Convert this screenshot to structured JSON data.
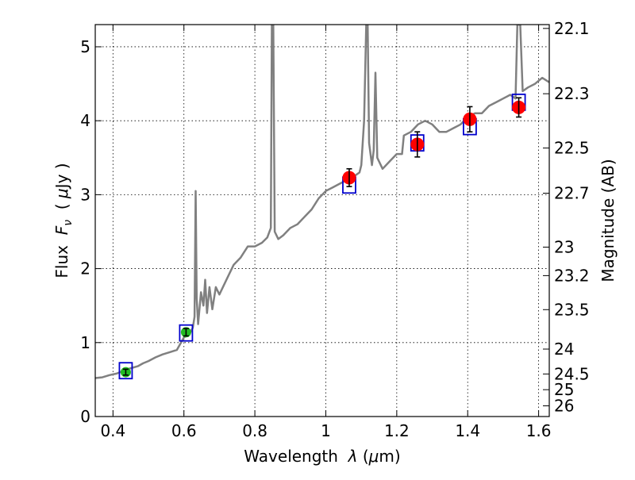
{
  "chart_data": {
    "type": "scatter",
    "title": "",
    "xlabel_plain": "Wavelength  ",
    "xlabel_symbol": "λ",
    "xlabel_unit_open": " (",
    "xlabel_mu": "μ",
    "xlabel_unit_close": "m)",
    "ylabel_prefix": "Flux  ",
    "ylabel_symbol": "F",
    "ylabel_subscript": "ν",
    "ylabel_unit_open": "  ( ",
    "ylabel_mu": "μ",
    "ylabel_unit_close": "Jy )",
    "y2label": "Magnitude (AB)",
    "xlim": [
      0.35,
      1.63
    ],
    "ylim": [
      0,
      5.3
    ],
    "x_ticks": [
      0.4,
      0.6,
      0.8,
      1.0,
      1.2,
      1.4,
      1.6
    ],
    "x_tick_labels": [
      "0.4",
      "0.6",
      "0.8",
      "1",
      "1.2",
      "1.4",
      "1.6"
    ],
    "y_ticks": [
      0,
      1,
      2,
      3,
      4,
      5
    ],
    "y_tick_labels": [
      "0",
      "1",
      "2",
      "3",
      "4",
      "5"
    ],
    "y2_ticks": [
      {
        "label": "22.1",
        "mag": 22.1
      },
      {
        "label": "22.3",
        "mag": 22.3
      },
      {
        "label": "22.5",
        "mag": 22.5
      },
      {
        "label": "22.7",
        "mag": 22.7
      },
      {
        "label": "23",
        "mag": 23.0
      },
      {
        "label": "23.2",
        "mag": 23.2
      },
      {
        "label": "23.5",
        "mag": 23.5
      },
      {
        "label": "24",
        "mag": 24.0
      },
      {
        "label": "24.5",
        "mag": 24.5
      },
      {
        "label": "25",
        "mag": 25.0
      },
      {
        "label": "26",
        "mag": 26.0
      }
    ],
    "grid": true,
    "colors": {
      "spectrum": "#808080",
      "model_box": "#0000cc",
      "optical_points": "#22bb22",
      "nir_points": "#ff0000",
      "errorbar": "#000000"
    },
    "spectrum": [
      [
        0.35,
        0.52
      ],
      [
        0.37,
        0.53
      ],
      [
        0.39,
        0.56
      ],
      [
        0.41,
        0.58
      ],
      [
        0.425,
        0.61
      ],
      [
        0.44,
        0.64
      ],
      [
        0.455,
        0.66
      ],
      [
        0.47,
        0.68
      ],
      [
        0.485,
        0.72
      ],
      [
        0.5,
        0.75
      ],
      [
        0.52,
        0.8
      ],
      [
        0.54,
        0.84
      ],
      [
        0.56,
        0.87
      ],
      [
        0.58,
        0.9
      ],
      [
        0.6,
        1.07
      ],
      [
        0.615,
        1.11
      ],
      [
        0.625,
        1.2
      ],
      [
        0.63,
        1.35
      ],
      [
        0.633,
        3.05
      ],
      [
        0.636,
        1.6
      ],
      [
        0.64,
        1.25
      ],
      [
        0.648,
        1.68
      ],
      [
        0.655,
        1.5
      ],
      [
        0.66,
        1.85
      ],
      [
        0.665,
        1.4
      ],
      [
        0.672,
        1.75
      ],
      [
        0.68,
        1.45
      ],
      [
        0.69,
        1.75
      ],
      [
        0.7,
        1.65
      ],
      [
        0.72,
        1.85
      ],
      [
        0.74,
        2.05
      ],
      [
        0.76,
        2.15
      ],
      [
        0.78,
        2.3
      ],
      [
        0.8,
        2.3
      ],
      [
        0.82,
        2.35
      ],
      [
        0.835,
        2.42
      ],
      [
        0.845,
        2.55
      ],
      [
        0.848,
        5.3
      ],
      [
        0.852,
        5.3
      ],
      [
        0.856,
        2.5
      ],
      [
        0.866,
        2.4
      ],
      [
        0.88,
        2.45
      ],
      [
        0.9,
        2.55
      ],
      [
        0.92,
        2.6
      ],
      [
        0.94,
        2.7
      ],
      [
        0.96,
        2.8
      ],
      [
        0.98,
        2.95
      ],
      [
        1.0,
        3.05
      ],
      [
        1.02,
        3.1
      ],
      [
        1.04,
        3.15
      ],
      [
        1.06,
        3.2
      ],
      [
        1.08,
        3.25
      ],
      [
        1.095,
        3.3
      ],
      [
        1.1,
        3.4
      ],
      [
        1.108,
        4.0
      ],
      [
        1.114,
        5.3
      ],
      [
        1.118,
        5.3
      ],
      [
        1.122,
        3.7
      ],
      [
        1.13,
        3.4
      ],
      [
        1.135,
        3.6
      ],
      [
        1.14,
        4.65
      ],
      [
        1.145,
        3.5
      ],
      [
        1.16,
        3.35
      ],
      [
        1.18,
        3.45
      ],
      [
        1.2,
        3.55
      ],
      [
        1.215,
        3.55
      ],
      [
        1.22,
        3.8
      ],
      [
        1.24,
        3.85
      ],
      [
        1.26,
        3.95
      ],
      [
        1.28,
        4.0
      ],
      [
        1.3,
        3.95
      ],
      [
        1.32,
        3.85
      ],
      [
        1.34,
        3.85
      ],
      [
        1.36,
        3.9
      ],
      [
        1.38,
        3.95
      ],
      [
        1.4,
        4.05
      ],
      [
        1.42,
        4.1
      ],
      [
        1.44,
        4.1
      ],
      [
        1.46,
        4.2
      ],
      [
        1.48,
        4.25
      ],
      [
        1.5,
        4.3
      ],
      [
        1.52,
        4.35
      ],
      [
        1.535,
        4.3
      ],
      [
        1.54,
        5.3
      ],
      [
        1.548,
        5.3
      ],
      [
        1.555,
        4.4
      ],
      [
        1.57,
        4.45
      ],
      [
        1.59,
        4.5
      ],
      [
        1.61,
        4.58
      ],
      [
        1.63,
        4.52
      ]
    ],
    "model_boxes": [
      {
        "x": 0.436,
        "y": 0.62
      },
      {
        "x": 0.606,
        "y": 1.13
      },
      {
        "x": 1.066,
        "y": 3.13
      },
      {
        "x": 1.258,
        "y": 3.7
      },
      {
        "x": 1.406,
        "y": 3.92
      },
      {
        "x": 1.544,
        "y": 4.25
      }
    ],
    "series": [
      {
        "group": "optical",
        "points": [
          {
            "x": 0.436,
            "y": 0.6,
            "err": 0.04
          },
          {
            "x": 0.606,
            "y": 1.14,
            "err": 0.05
          }
        ]
      },
      {
        "group": "nir",
        "points": [
          {
            "x": 1.066,
            "y": 3.23,
            "err": 0.12
          },
          {
            "x": 1.258,
            "y": 3.68,
            "err": 0.17
          },
          {
            "x": 1.406,
            "y": 4.02,
            "err": 0.17
          },
          {
            "x": 1.544,
            "y": 4.18,
            "err": 0.13
          }
        ]
      }
    ]
  }
}
